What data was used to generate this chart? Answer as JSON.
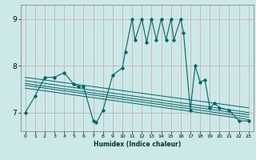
{
  "title": "",
  "xlabel": "Humidex (Indice chaleur)",
  "ylabel": "",
  "bg_color": "#cce8e8",
  "line_color": "#006666",
  "grid_color": "#aacfcf",
  "xlim": [
    -0.5,
    23.5
  ],
  "ylim": [
    6.6,
    9.3
  ],
  "xticks": [
    0,
    1,
    2,
    3,
    4,
    5,
    6,
    7,
    8,
    9,
    10,
    11,
    12,
    13,
    14,
    15,
    16,
    17,
    18,
    19,
    20,
    21,
    22,
    23
  ],
  "yticks": [
    7,
    8,
    9
  ],
  "series": [
    [
      0.0,
      7.0
    ],
    [
      1.0,
      7.35
    ],
    [
      2.0,
      7.75
    ],
    [
      3.0,
      7.75
    ],
    [
      4.0,
      7.85
    ],
    [
      5.0,
      7.6
    ],
    [
      5.5,
      7.55
    ],
    [
      6.0,
      7.55
    ],
    [
      7.0,
      6.82
    ],
    [
      7.3,
      6.78
    ],
    [
      8.0,
      7.05
    ],
    [
      9.0,
      7.8
    ],
    [
      10.0,
      7.95
    ],
    [
      10.3,
      8.3
    ],
    [
      11.0,
      9.0
    ],
    [
      11.3,
      8.55
    ],
    [
      12.0,
      9.0
    ],
    [
      12.5,
      8.5
    ],
    [
      13.0,
      9.0
    ],
    [
      13.5,
      8.55
    ],
    [
      14.0,
      9.0
    ],
    [
      14.5,
      8.55
    ],
    [
      15.0,
      9.0
    ],
    [
      15.3,
      8.55
    ],
    [
      16.0,
      9.0
    ],
    [
      16.3,
      8.7
    ],
    [
      17.0,
      7.05
    ],
    [
      17.5,
      8.0
    ],
    [
      18.0,
      7.65
    ],
    [
      18.5,
      7.7
    ],
    [
      19.0,
      7.1
    ],
    [
      19.5,
      7.2
    ],
    [
      20.0,
      7.1
    ],
    [
      21.0,
      7.05
    ],
    [
      22.0,
      6.82
    ],
    [
      23.0,
      6.82
    ]
  ],
  "linear_series": [
    [
      [
        0.0,
        7.75
      ],
      [
        23.0,
        7.1
      ]
    ],
    [
      [
        0.0,
        7.68
      ],
      [
        23.0,
        7.0
      ]
    ],
    [
      [
        0.0,
        7.62
      ],
      [
        23.0,
        6.95
      ]
    ],
    [
      [
        0.0,
        7.58
      ],
      [
        23.0,
        6.9
      ]
    ],
    [
      [
        0.0,
        7.52
      ],
      [
        23.0,
        6.85
      ]
    ]
  ]
}
